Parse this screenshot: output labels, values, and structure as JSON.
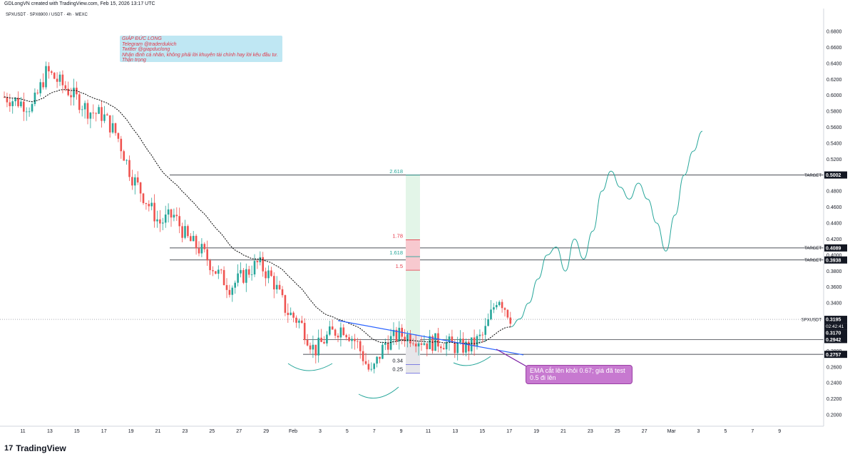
{
  "header": {
    "created_by": "GDLongVN created with TradingView.com, Feb 15, 2026 13:17 UTC",
    "symbol_line": "SPXUSDT · SPX6900 / USDT · 4h · MEXC"
  },
  "note": {
    "lines": [
      "GIÁP ĐỨC LONG",
      "Telegram @traderdukich",
      "Twitter @giapduclong",
      "Nhận định cá nhân, không phải lời khuyên tài chính hay lời kêu đầu tư.",
      "Thận trọng"
    ]
  },
  "callout": {
    "text": "EMA cắt lên khỏi 0.67; giá đã test 0.5 đi lên"
  },
  "footer": {
    "brand": "TradingView",
    "logo": "17"
  },
  "colors": {
    "candle_up": "#26a69a",
    "candle_down": "#ef5350",
    "ema": "#000000",
    "trendline": "#2962ff",
    "projection": "#26a69a",
    "fib_green": "#26a69a",
    "fib_red": "#e53949"
  },
  "chart_data": {
    "type": "candlestick",
    "symbol": "SPXUSDT",
    "timeframe": "4h",
    "exchange": "MEXC",
    "ylim": [
      0.18,
      0.69
    ],
    "y_ticks": [
      "0.2000",
      "0.2200",
      "0.2400",
      "0.2600",
      "0.2800",
      "0.3000",
      "0.3200",
      "0.3400",
      "0.3600",
      "0.3800",
      "0.4000",
      "0.4200",
      "0.4400",
      "0.4600",
      "0.4800",
      "0.5000",
      "0.5200",
      "0.5400",
      "0.5600",
      "0.5800",
      "0.6000",
      "0.6200",
      "0.6400",
      "0.6600",
      "0.6800"
    ],
    "x_ticks": [
      "11",
      "13",
      "15",
      "17",
      "19",
      "21",
      "23",
      "25",
      "27",
      "29",
      "Feb",
      "3",
      "5",
      "7",
      "9",
      "11",
      "13",
      "15",
      "17",
      "19",
      "21",
      "23",
      "25",
      "27",
      "Mar",
      "3",
      "5",
      "7",
      "9"
    ],
    "price_series": [
      [
        "11",
        0.598
      ],
      [
        "12",
        0.592
      ],
      [
        "13",
        0.585
      ],
      [
        "14",
        0.63
      ],
      [
        "14.5",
        0.615
      ],
      [
        "15",
        0.598
      ],
      [
        "16",
        0.58
      ],
      [
        "17",
        0.575
      ],
      [
        "18",
        0.55
      ],
      [
        "19",
        0.5
      ],
      [
        "20",
        0.47
      ],
      [
        "21",
        0.44
      ],
      [
        "22",
        0.45
      ],
      [
        "23",
        0.42
      ],
      [
        "24",
        0.405
      ],
      [
        "25",
        0.38
      ],
      [
        "26",
        0.36
      ],
      [
        "27",
        0.375
      ],
      [
        "28",
        0.39
      ],
      [
        "29",
        0.37
      ],
      [
        "30",
        0.33
      ],
      [
        "Feb",
        0.315
      ],
      [
        "2",
        0.28
      ],
      [
        "3",
        0.3
      ],
      [
        "4",
        0.31
      ],
      [
        "5",
        0.29
      ],
      [
        "6",
        0.25
      ],
      [
        "7",
        0.29
      ],
      [
        "8",
        0.3
      ],
      [
        "9",
        0.298
      ],
      [
        "10",
        0.29
      ],
      [
        "11",
        0.292
      ],
      [
        "12",
        0.285
      ],
      [
        "13",
        0.285
      ],
      [
        "13.5",
        0.3
      ],
      [
        "14",
        0.35
      ],
      [
        "14.5",
        0.3195
      ]
    ],
    "projection": [
      [
        "15",
        0.31
      ],
      [
        "16",
        0.32
      ],
      [
        "17",
        0.34
      ],
      [
        "18",
        0.37
      ],
      [
        "18.5",
        0.4
      ],
      [
        "19",
        0.41
      ],
      [
        "20",
        0.38
      ],
      [
        "21",
        0.42
      ],
      [
        "21.5",
        0.395
      ],
      [
        "22",
        0.43
      ],
      [
        "23",
        0.48
      ],
      [
        "24",
        0.505
      ],
      [
        "25",
        0.485
      ],
      [
        "26",
        0.47
      ],
      [
        "27",
        0.49
      ],
      [
        "28",
        0.47
      ],
      [
        "29",
        0.44
      ],
      [
        "Mar",
        0.405
      ],
      [
        "2",
        0.45
      ],
      [
        "3",
        0.5
      ],
      [
        "4",
        0.53
      ],
      [
        "5",
        0.555
      ]
    ],
    "horizontal_levels": [
      {
        "label": "TARGET",
        "value": "0.5002"
      },
      {
        "label": "TARGET",
        "value": "0.4089"
      },
      {
        "label": "TARGET",
        "value": "0.3938"
      },
      {
        "label": "SPXUSDT",
        "value": "0.3195"
      },
      {
        "label": "",
        "value": "0.2942"
      },
      {
        "label": "",
        "value": "0.2757"
      }
    ],
    "countdown": "02:42:41",
    "ema_value": "0.3170",
    "fib_levels": [
      {
        "label": "2.618",
        "value": 0.5
      },
      {
        "label": "1.78",
        "value": 0.419
      },
      {
        "label": "1.618",
        "value": 0.398
      },
      {
        "label": "1.5",
        "value": 0.381
      },
      {
        "label": "0.34",
        "value": 0.263
      },
      {
        "label": "0.25",
        "value": 0.252
      }
    ]
  }
}
